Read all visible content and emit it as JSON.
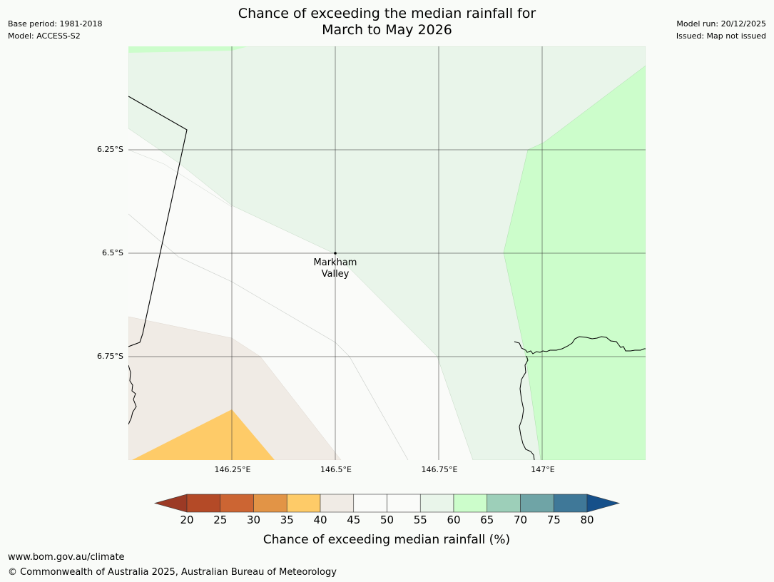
{
  "title_line1": "Chance of exceeding the median rainfall for",
  "title_line2": "March to May 2026",
  "base_period": "Base period: 1981-2018",
  "model": "Model: ACCESS-S2",
  "model_run": "Model run: 20/12/2025",
  "issued": "Issued: Map not issued",
  "lat_labels": [
    "6.25°S",
    "6.5°S",
    "6.75°S"
  ],
  "lon_labels": [
    "146.25°E",
    "146.5°E",
    "146.75°E",
    "147°E"
  ],
  "place": {
    "line1": "Markham",
    "line2": "Valley"
  },
  "colorbar": {
    "label": "Chance of exceeding median rainfall (%)",
    "ticks": [
      "20",
      "25",
      "30",
      "35",
      "40",
      "45",
      "50",
      "55",
      "60",
      "65",
      "70",
      "75",
      "80"
    ],
    "colors": [
      "#9c3a25",
      "#b44a27",
      "#cc6533",
      "#e29446",
      "#fecb68",
      "#f0ebe5",
      "#fafbf9",
      "#fafbf9",
      "#e9f5ea",
      "#ccfdcb",
      "#9dcfb9",
      "#6fa4a6",
      "#3f7898",
      "#16508a"
    ]
  },
  "footer_url": "www.bom.gov.au/climate",
  "footer_copy": "© Commonwealth of Australia 2025, Australian Bureau of Meteorology"
}
